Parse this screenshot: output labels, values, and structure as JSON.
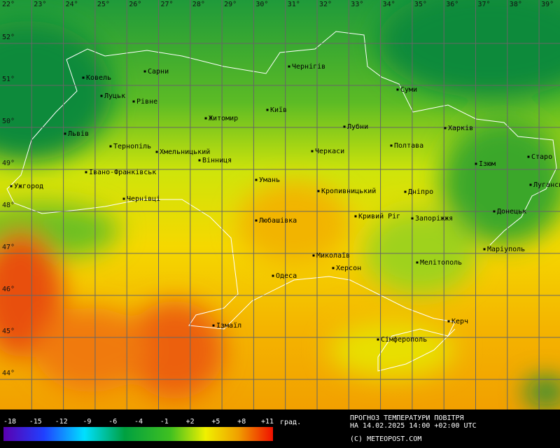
{
  "longitudes": [
    "22°",
    "23°",
    "24°",
    "25°",
    "26°",
    "27°",
    "28°",
    "29°",
    "30°",
    "31°",
    "32°",
    "33°",
    "34°",
    "35°",
    "36°",
    "37°",
    "38°",
    "39°"
  ],
  "latitudes": [
    "52°",
    "51°",
    "50°",
    "49°",
    "48°",
    "47°",
    "46°",
    "45°",
    "44°"
  ],
  "cities": [
    "Ковель",
    "Сарни",
    "Чернігів",
    "Луцьк",
    "Рівне",
    "Суми",
    "Житомир",
    "Київ",
    "Львів",
    "Лубни",
    "Харків",
    "Тернопіль",
    "Хмельницький",
    "Полтава",
    "Черкаси",
    "Вінниця",
    "Ізюм",
    "Старо",
    "Івано-Франківськ",
    "Ужгород",
    "Умань",
    "Кропивницький",
    "Дніпро",
    "Луганськ",
    "Чернівці",
    "Кривий Ріг",
    "Запоріжжя",
    "Донецьк",
    "Любашівка",
    "Миколаїв",
    "Маріуполь",
    "Мелітополь",
    "Херсон",
    "Одеса",
    "Керч",
    "Ізмаїл",
    "Сімферополь"
  ],
  "legend": {
    "ticks": [
      "-18",
      "-15",
      "-12",
      "-9",
      "-6",
      "-4",
      "-1",
      "+2",
      "+5",
      "+8",
      "+11"
    ],
    "unit": "град."
  },
  "caption": {
    "line1": "ПРОГНОЗ ТЕМПЕРАТУРИ ПОВІТРЯ",
    "line2": "НА 14.02.2025 14:00 +02:00 UTC",
    "copyright": "(C) METEOPOST.COM"
  }
}
